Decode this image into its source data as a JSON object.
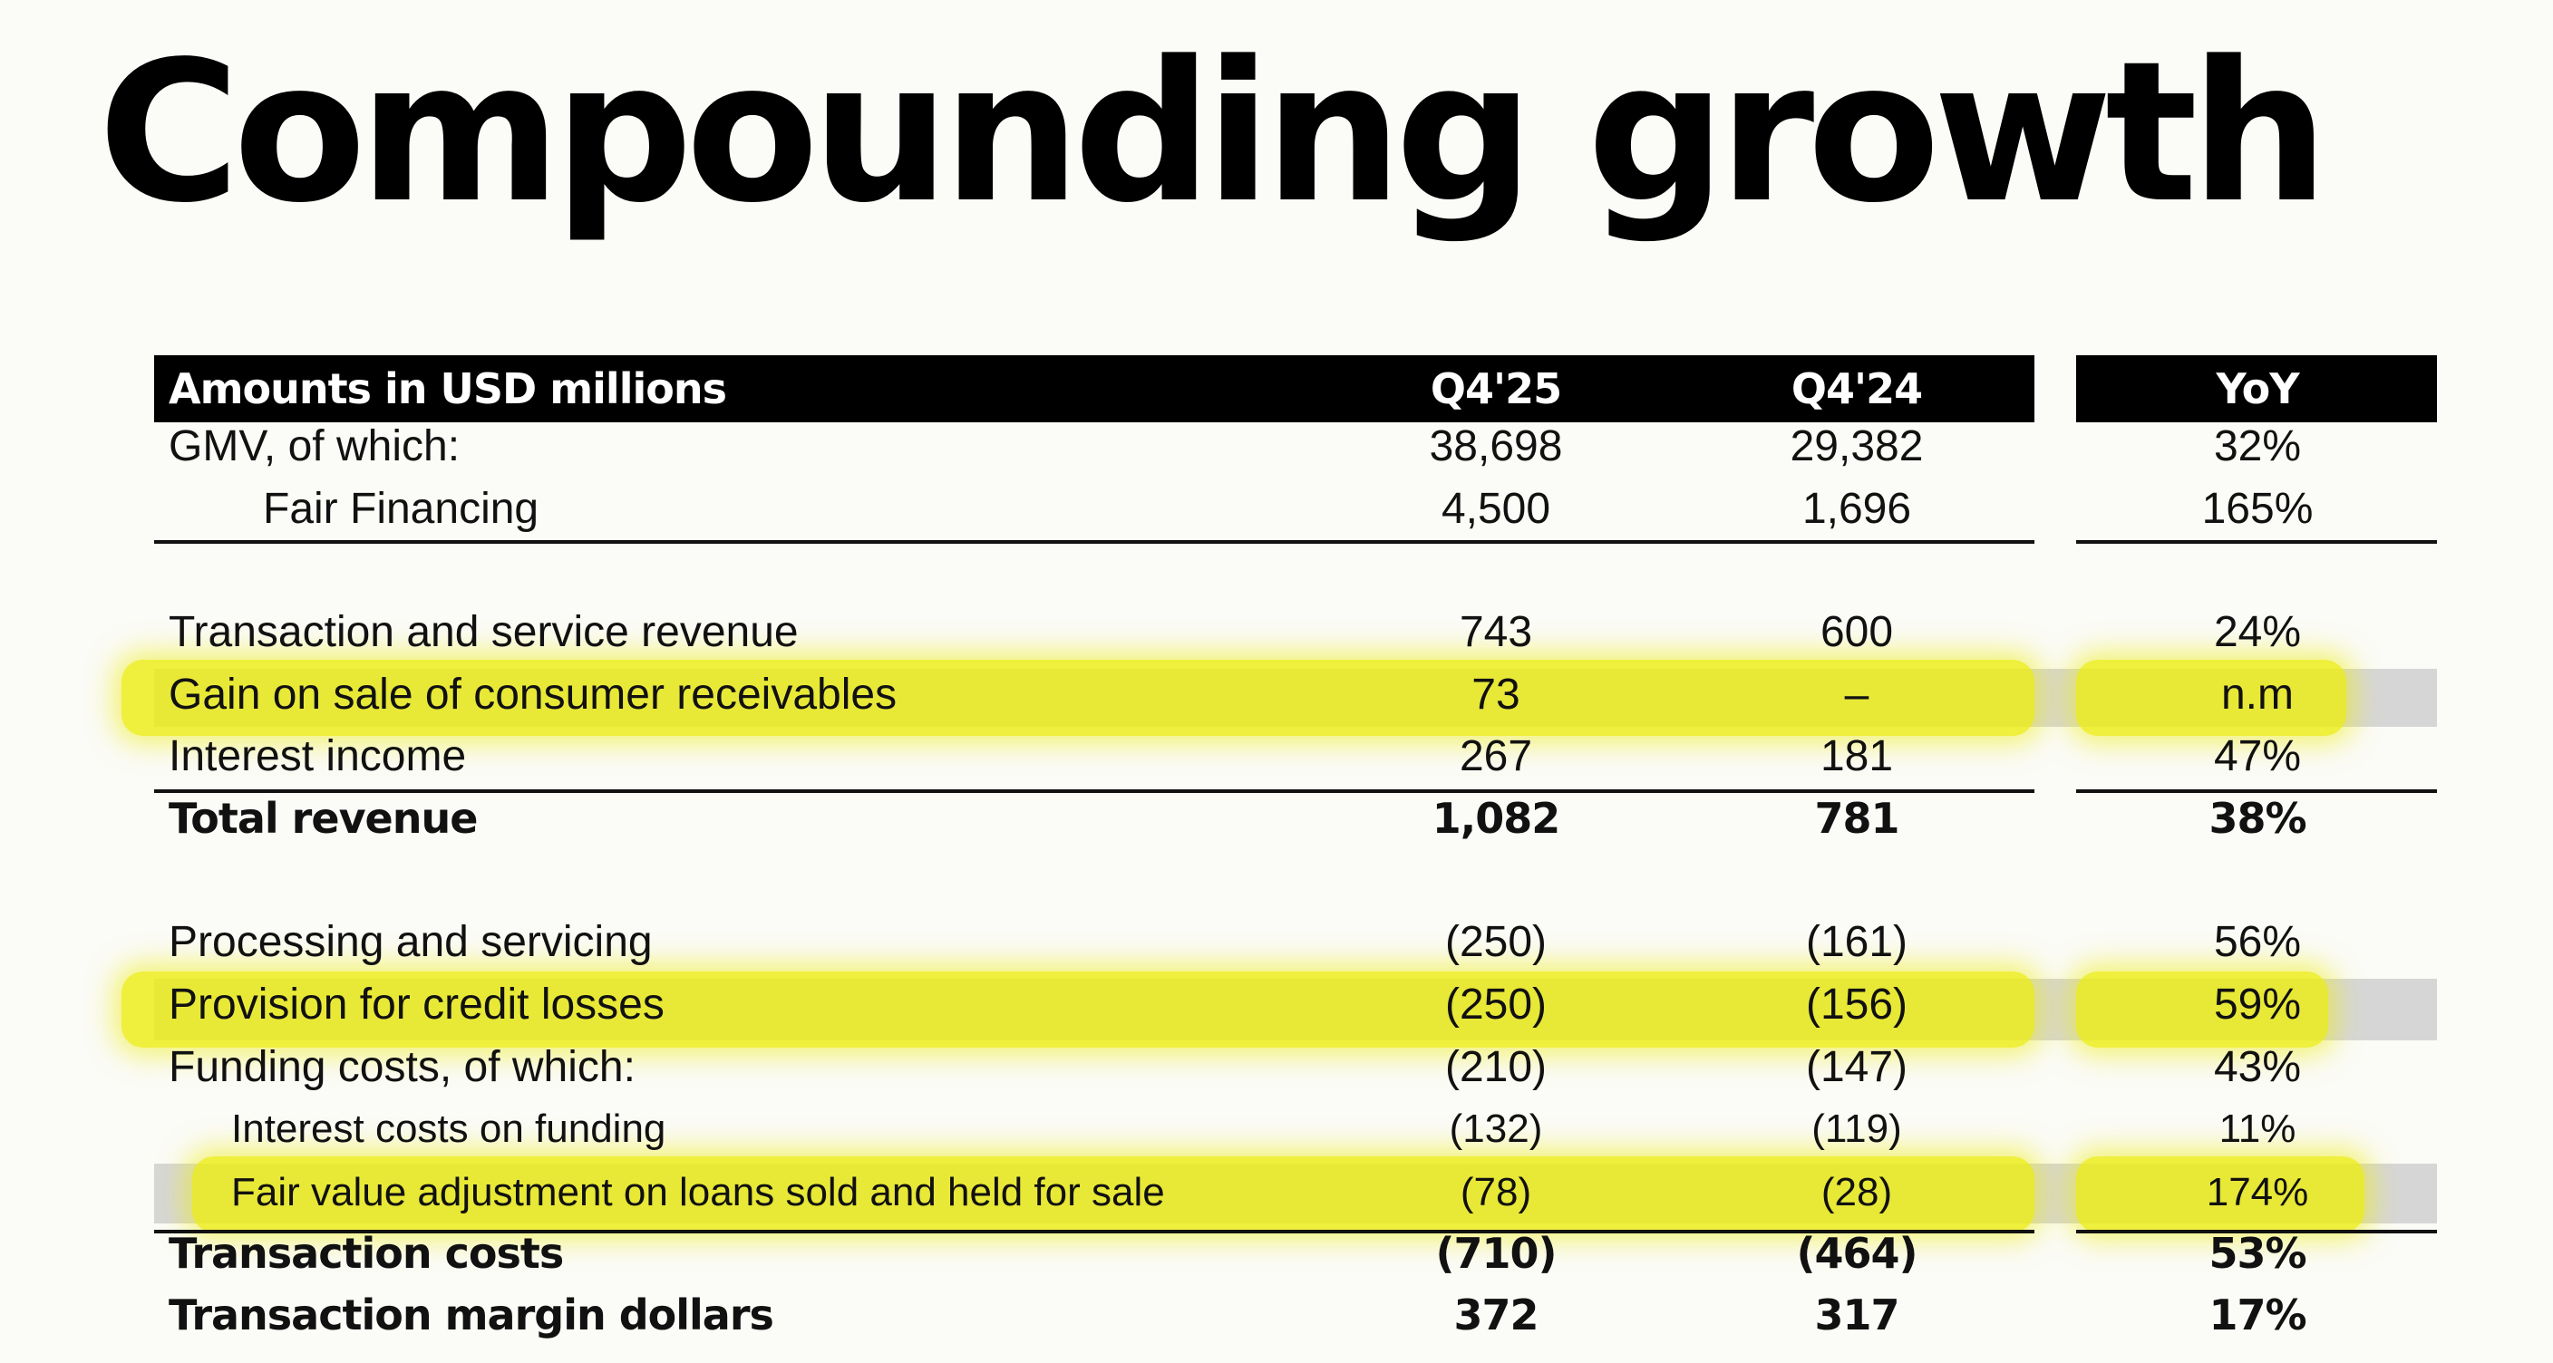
{
  "title": "Compounding growth",
  "header": {
    "label": "Amounts in USD millions",
    "q4_25": "Q4'25",
    "q4_24": "Q4'24",
    "yoy": "YoY"
  },
  "rows": [
    {
      "label": "GMV, of which:",
      "q4_25": "38,698",
      "q4_24": "29,382",
      "yoy": "32%"
    },
    {
      "label": "Fair Financing",
      "q4_25": "4,500",
      "q4_24": "1,696",
      "yoy": "165%"
    },
    {
      "label": "Transaction and service revenue",
      "q4_25": "743",
      "q4_24": "600",
      "yoy": "24%"
    },
    {
      "label": "Gain on sale of consumer receivables",
      "q4_25": "73",
      "q4_24": "–",
      "yoy": "n.m"
    },
    {
      "label": "Interest income",
      "q4_25": "267",
      "q4_24": "181",
      "yoy": "47%"
    },
    {
      "label": "Total revenue",
      "q4_25": "1,082",
      "q4_24": "781",
      "yoy": "38%"
    },
    {
      "label": "Processing and servicing",
      "q4_25": "(250)",
      "q4_24": "(161)",
      "yoy": "56%"
    },
    {
      "label": "Provision for credit losses",
      "q4_25": "(250)",
      "q4_24": "(156)",
      "yoy": "59%"
    },
    {
      "label": "Funding costs, of which:",
      "q4_25": "(210)",
      "q4_24": "(147)",
      "yoy": "43%"
    },
    {
      "label": "Interest costs on funding",
      "q4_25": "(132)",
      "q4_24": "(119)",
      "yoy": "11%"
    },
    {
      "label": "Fair value adjustment on loans sold and held for sale",
      "q4_25": "(78)",
      "q4_24": "(28)",
      "yoy": "174%"
    },
    {
      "label": "Transaction costs",
      "q4_25": "(710)",
      "q4_24": "(464)",
      "yoy": "53%"
    },
    {
      "label": "Transaction margin dollars",
      "q4_25": "372",
      "q4_24": "317",
      "yoy": "17%"
    }
  ],
  "colors": {
    "highlight": "#ecec14",
    "header_bg": "#000000",
    "row_shade": "#d6d6d6"
  }
}
